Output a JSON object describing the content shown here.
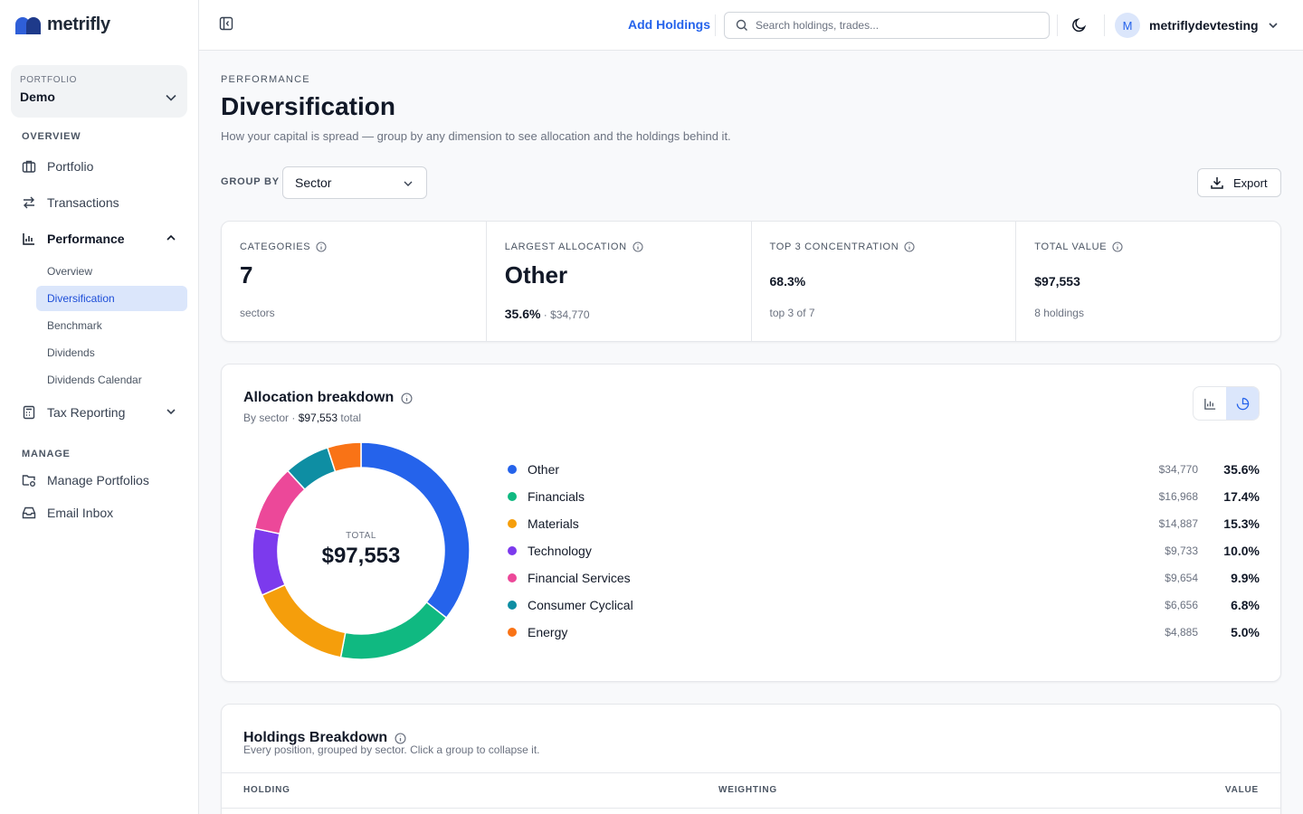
{
  "app": {
    "name": "metrifly"
  },
  "sidebar": {
    "portfolio_caption": "PORTFOLIO",
    "portfolio_name": "Demo",
    "section_overview": "OVERVIEW",
    "section_manage": "MANAGE",
    "nav": {
      "portfolio": "Portfolio",
      "transactions": "Transactions",
      "performance": "Performance",
      "tax_reporting": "Tax Reporting",
      "manage_portfolios": "Manage Portfolios",
      "email_inbox": "Email Inbox"
    },
    "performance_sub": [
      "Overview",
      "Diversification",
      "Benchmark",
      "Dividends",
      "Dividends Calendar"
    ]
  },
  "topbar": {
    "add_holdings": "Add Holdings",
    "search_placeholder": "Search holdings, trades...",
    "avatar_initial": "M",
    "username": "metriflydevtesting"
  },
  "page": {
    "eyebrow": "PERFORMANCE",
    "title": "Diversification",
    "description": "How your capital is spread — group by any dimension to see allocation and the holdings behind it.",
    "group_by_label": "GROUP BY",
    "group_by_value": "Sector",
    "export_label": "Export"
  },
  "kpis": {
    "categories": {
      "label": "CATEGORIES",
      "value": "7",
      "sub": "sectors"
    },
    "largest": {
      "label": "LARGEST ALLOCATION",
      "value": "Other",
      "pct": "35.6%",
      "sep": " · ",
      "amount": "$34,770"
    },
    "top3": {
      "label": "TOP 3 CONCENTRATION",
      "value": "68.3%",
      "sub": "top 3 of 7"
    },
    "total": {
      "label": "TOTAL VALUE",
      "value": "$97,553",
      "sub": "8 holdings"
    }
  },
  "allocation": {
    "title": "Allocation breakdown",
    "sub_prefix": "By sector · ",
    "sub_amount": "$97,553",
    "sub_suffix": " total",
    "donut_caption": "TOTAL",
    "donut_total": "$97,553"
  },
  "chart_data": {
    "type": "pie",
    "categories": [
      "Other",
      "Financials",
      "Materials",
      "Technology",
      "Financial Services",
      "Consumer Cyclical",
      "Energy"
    ],
    "amounts": [
      "$34,770",
      "$16,968",
      "$14,887",
      "$9,733",
      "$9,654",
      "$6,656",
      "$4,885"
    ],
    "percents": [
      "35.6%",
      "17.4%",
      "15.3%",
      "10.0%",
      "9.9%",
      "6.8%",
      "5.0%"
    ],
    "values": [
      35.6,
      17.4,
      15.3,
      10.0,
      9.9,
      6.8,
      5.0
    ],
    "colors": [
      "#2563eb",
      "#10b981",
      "#f59e0b",
      "#7c3aed",
      "#ec4899",
      "#0e8ea3",
      "#f97316"
    ]
  },
  "holdings": {
    "title": "Holdings Breakdown",
    "description": "Every position, grouped by sector. Click a group to collapse it.",
    "columns": [
      "HOLDING",
      "WEIGHTING",
      "VALUE"
    ]
  }
}
